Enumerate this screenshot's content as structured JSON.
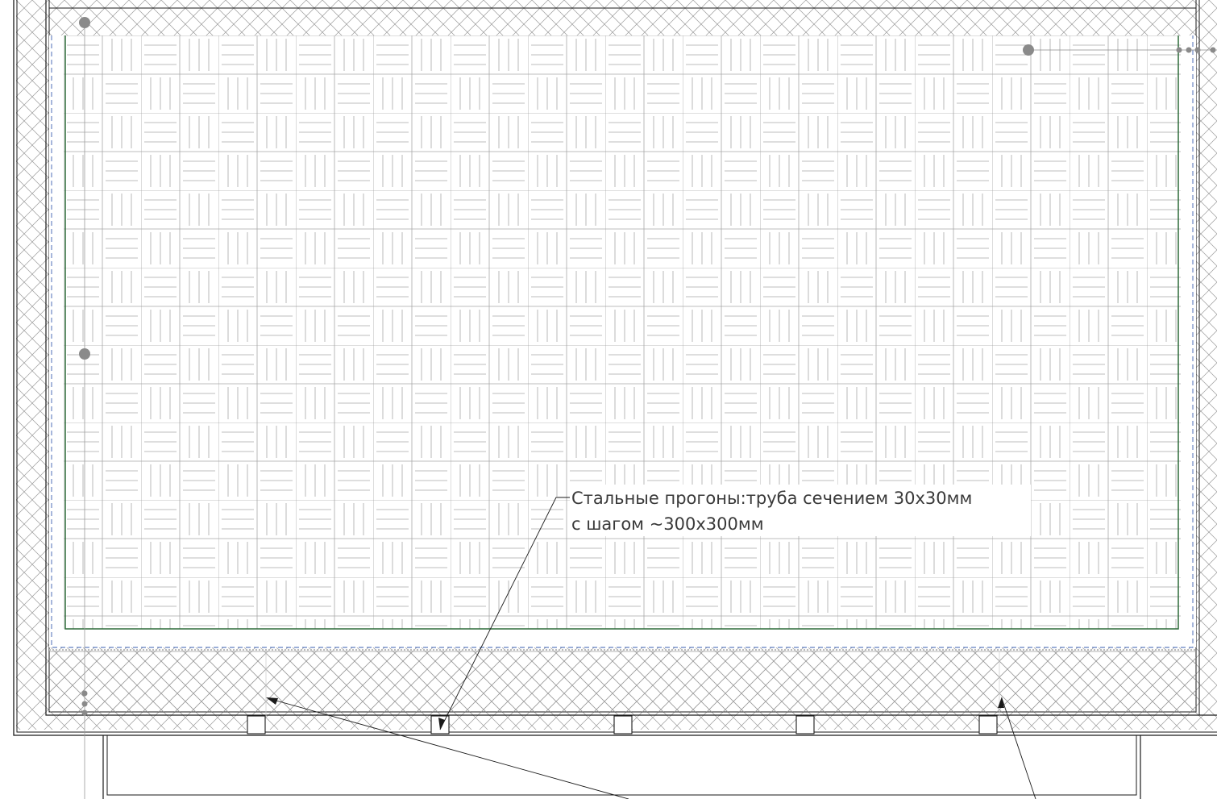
{
  "annotation": {
    "line1": "Стальные прогоны:труба сечением 30х30мм",
    "line2": "с шагом ~300х300мм"
  },
  "colors": {
    "background": "#ffffff",
    "outline": "#1a1a1a",
    "hatch": "#9a9a9a",
    "tile_pattern": "#a8a8a8",
    "green_border": "#2e6b3a",
    "blue_dash": "#3a5fb0",
    "markers": "#8a8a8a",
    "label_text": "#3a3a3a"
  },
  "patterns": {
    "wall_fill": "diagonal-crosshatch",
    "floor_fill": "basketweave-tile"
  },
  "icons": {
    "marker": "grip-point-dot"
  }
}
